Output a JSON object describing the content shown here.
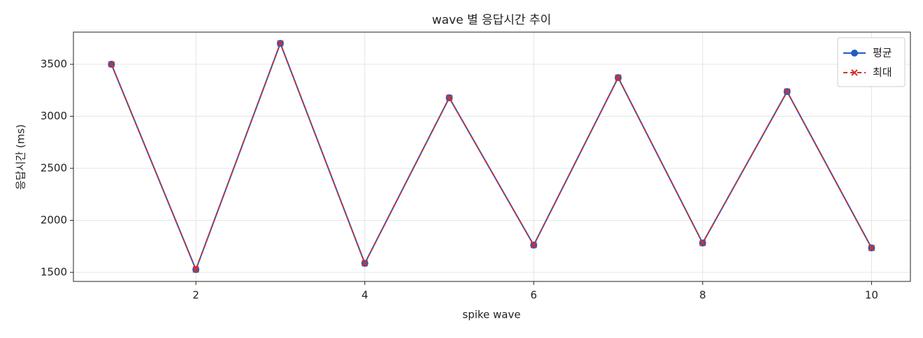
{
  "chart_data": {
    "type": "line",
    "title": "wave 별 응답시간 추이",
    "xlabel": "spike wave",
    "ylabel": "응답시간 (ms)",
    "x": [
      1,
      2,
      3,
      4,
      5,
      6,
      7,
      8,
      9,
      10
    ],
    "series": [
      {
        "name": "평균",
        "color": "#1f5fbf",
        "marker": "circle",
        "dash": false,
        "values": [
          3500,
          1527,
          3701,
          1587,
          3178,
          1762,
          3372,
          1782,
          3238,
          1735
        ]
      },
      {
        "name": "최대",
        "color": "#d32f2f",
        "marker": "x",
        "dash": true,
        "values": [
          3500,
          1527,
          3701,
          1587,
          3178,
          1762,
          3372,
          1782,
          3238,
          1735
        ]
      }
    ],
    "xlim": [
      0.55,
      10.46
    ],
    "ylim": [
      1413,
      3809
    ],
    "xticks": [
      2,
      4,
      6,
      8,
      10
    ],
    "yticks": [
      1500,
      2000,
      2500,
      3000,
      3500
    ],
    "grid": true,
    "legend": "upper right"
  }
}
